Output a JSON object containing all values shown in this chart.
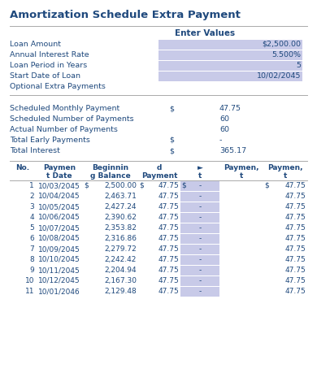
{
  "title": "Amortization Schedule Extra Payment",
  "bg_color": "#FFFFFF",
  "section1_label": "Enter Values",
  "input_fields": [
    [
      "Loan Amount",
      "$2,500.00"
    ],
    [
      "Annual Interest Rate",
      "5.500%"
    ],
    [
      "Loan Period in Years",
      "5"
    ],
    [
      "Start Date of Loan",
      "10/02/2045"
    ],
    [
      "Optional Extra Payments",
      ""
    ]
  ],
  "input_bg": "#C8CAE8",
  "section2_rows": [
    [
      "Scheduled Monthly Payment",
      "$",
      "47.75"
    ],
    [
      "Scheduled Number of Payments",
      "",
      "60"
    ],
    [
      "Actual Number of Payments",
      "",
      "60"
    ],
    [
      "Total Early Payments",
      "$",
      "-"
    ],
    [
      "Total Interest",
      "$",
      "365.17"
    ]
  ],
  "table_data": [
    [
      1,
      "10/03/2045",
      "2,500.00",
      "47.75",
      "-",
      "47.75"
    ],
    [
      2,
      "10/04/2045",
      "2,463.71",
      "47.75",
      "-",
      "47.75"
    ],
    [
      3,
      "10/05/2045",
      "2,427.24",
      "47.75",
      "-",
      "47.75"
    ],
    [
      4,
      "10/06/2045",
      "2,390.62",
      "47.75",
      "-",
      "47.75"
    ],
    [
      5,
      "10/07/2045",
      "2,353.82",
      "47.75",
      "-",
      "47.75"
    ],
    [
      6,
      "10/08/2045",
      "2,316.86",
      "47.75",
      "-",
      "47.75"
    ],
    [
      7,
      "10/09/2045",
      "2,279.72",
      "47.75",
      "-",
      "47.75"
    ],
    [
      8,
      "10/10/2045",
      "2,242.42",
      "47.75",
      "-",
      "47.75"
    ],
    [
      9,
      "10/11/2045",
      "2,204.94",
      "47.75",
      "-",
      "47.75"
    ],
    [
      10,
      "10/12/2045",
      "2,167.30",
      "47.75",
      "-",
      "47.75"
    ],
    [
      11,
      "10/01/2046",
      "2,129.48",
      "47.75",
      "-",
      "47.75"
    ]
  ],
  "table_alt_color": "#C8CAE8",
  "text_color": "#1F497D",
  "line_color": "#AAAAAA",
  "title_fontsize": 9.5,
  "label_fontsize": 6.8,
  "table_fontsize": 6.5
}
